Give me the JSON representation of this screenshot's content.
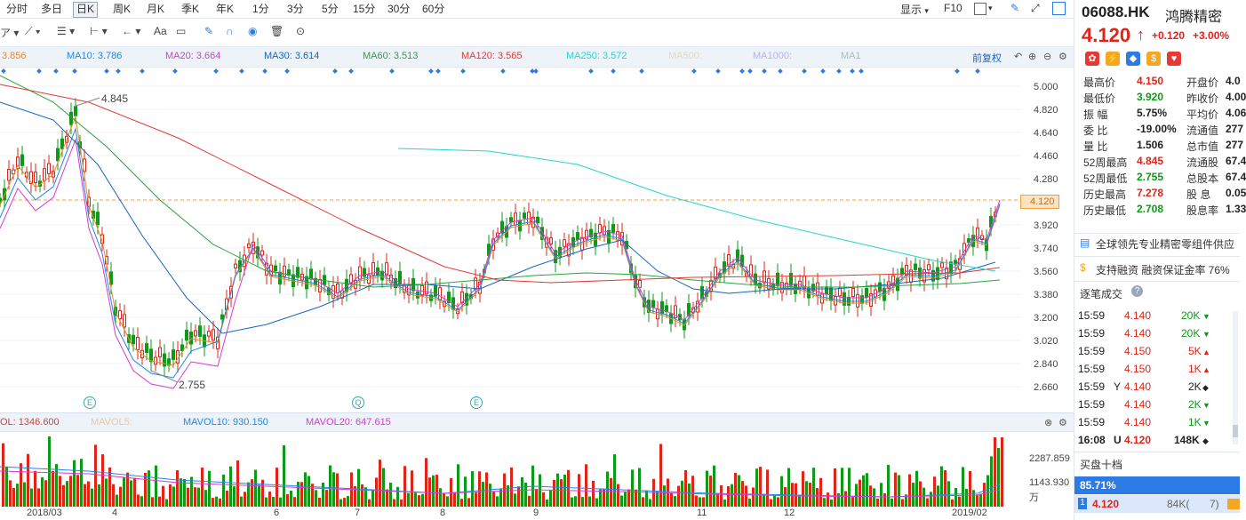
{
  "toolbar": {
    "periods": [
      "分时",
      "多日",
      "日K",
      "周K",
      "月K",
      "季K",
      "年K",
      "1分",
      "3分",
      "5分",
      "15分",
      "30分",
      "60分"
    ],
    "active_period": "日K",
    "display_label": "显示",
    "f10_label": "F10"
  },
  "ma_bar": {
    "ma5": "3.856",
    "ma10": "MA10: 3.786",
    "ma20": "MA20: 3.664",
    "ma30": "MA30: 3.614",
    "ma60": "MA60: 3.513",
    "ma120": "MA120: 3.565",
    "ma250": "MA250: 3.572",
    "ma500": "MA500:",
    "ma1000": "MA1000:",
    "ma_extra": "MA1",
    "adjust": "前复权",
    "colors": {
      "ma10": "#1e88e5",
      "ma20": "#d63ad0",
      "ma30": "#1565c0",
      "ma60": "#2aa43a",
      "ma120": "#e53935",
      "ma250": "#27d3d0"
    }
  },
  "price_axis": {
    "ticks": [
      "5.000",
      "4.820",
      "4.640",
      "4.460",
      "4.280",
      "4.120",
      "3.920",
      "3.740",
      "3.560",
      "3.380",
      "3.200",
      "3.020",
      "2.840",
      "2.660"
    ],
    "current_price": "4.120",
    "high_mark": "4.845",
    "low_mark": "2.755"
  },
  "event_markers": [
    "E",
    "Q",
    "E"
  ],
  "volume_bar": {
    "vol": "OL: 1346.600",
    "mavol5": "MAVOL5:",
    "mavol10": "MAVOL10: 930.150",
    "mavol20": "MAVOL20: 647.615"
  },
  "volume_axis": {
    "top": "2287.859",
    "mid": "1143.930",
    "unit": "万"
  },
  "date_axis": [
    "2018/03",
    "4",
    "6",
    "7",
    "8",
    "9",
    "11",
    "12",
    "2019/02"
  ],
  "stock": {
    "code": "06088.HK",
    "name": "鸿腾精密",
    "price": "4.120",
    "change": "+0.120",
    "change_pct": "+3.00%"
  },
  "quote_rows": [
    {
      "l1": "最高价",
      "v1": "4.150",
      "c1": "red",
      "l2": "开盘价",
      "v2": "4.0"
    },
    {
      "l1": "最低价",
      "v1": "3.920",
      "c1": "green",
      "l2": "昨收价",
      "v2": "4.00"
    },
    {
      "l1": "振  幅",
      "v1": "5.75%",
      "c1": "dark",
      "l2": "平均价",
      "v2": "4.06"
    },
    {
      "l1": "委  比",
      "v1": "-19.00%",
      "c1": "dark",
      "l2": "流通值",
      "v2": "277"
    },
    {
      "l1": "量  比",
      "v1": "1.506",
      "c1": "dark",
      "l2": "总市值",
      "v2": "277"
    },
    {
      "l1": "52周最高",
      "v1": "4.845",
      "c1": "red",
      "l2": "流通股",
      "v2": "67.4"
    },
    {
      "l1": "52周最低",
      "v1": "2.755",
      "c1": "green",
      "l2": "总股本",
      "v2": "67.4"
    },
    {
      "l1": "历史最高",
      "v1": "7.278",
      "c1": "red",
      "l2": "股  息",
      "v2": "0.05"
    },
    {
      "l1": "历史最低",
      "v1": "2.708",
      "c1": "green",
      "l2": "股息率",
      "v2": "1.33"
    }
  ],
  "news": "全球领先专业精密零组件供应",
  "margin": {
    "text": "支持融资  融资保证金率  76%"
  },
  "trades_title": "逐笔成交",
  "trades": [
    {
      "t": "15:59",
      "f": "",
      "p": "4.140",
      "pc": "red",
      "v": "20K",
      "vc": "green",
      "d": "down"
    },
    {
      "t": "15:59",
      "f": "",
      "p": "4.140",
      "pc": "red",
      "v": "20K",
      "vc": "green",
      "d": "down"
    },
    {
      "t": "15:59",
      "f": "",
      "p": "4.150",
      "pc": "red",
      "v": "5K",
      "vc": "red",
      "d": "up"
    },
    {
      "t": "15:59",
      "f": "",
      "p": "4.150",
      "pc": "red",
      "v": "1K",
      "vc": "red",
      "d": "up"
    },
    {
      "t": "15:59",
      "f": "Y",
      "p": "4.140",
      "pc": "red",
      "v": "2K",
      "vc": "dark",
      "d": "flat"
    },
    {
      "t": "15:59",
      "f": "",
      "p": "4.140",
      "pc": "red",
      "v": "2K",
      "vc": "green",
      "d": "down"
    },
    {
      "t": "15:59",
      "f": "",
      "p": "4.140",
      "pc": "red",
      "v": "1K",
      "vc": "green",
      "d": "down"
    },
    {
      "t": "16:08",
      "f": "U",
      "p": "4.120",
      "pc": "red",
      "v": "148K",
      "vc": "dark",
      "d": "flat"
    }
  ],
  "buy_title": "买盘十档",
  "buy_pct": "85.71%",
  "buy_rows": [
    {
      "idx": "1",
      "p": "4.120",
      "v": "84K(",
      "n": "7)"
    }
  ]
}
